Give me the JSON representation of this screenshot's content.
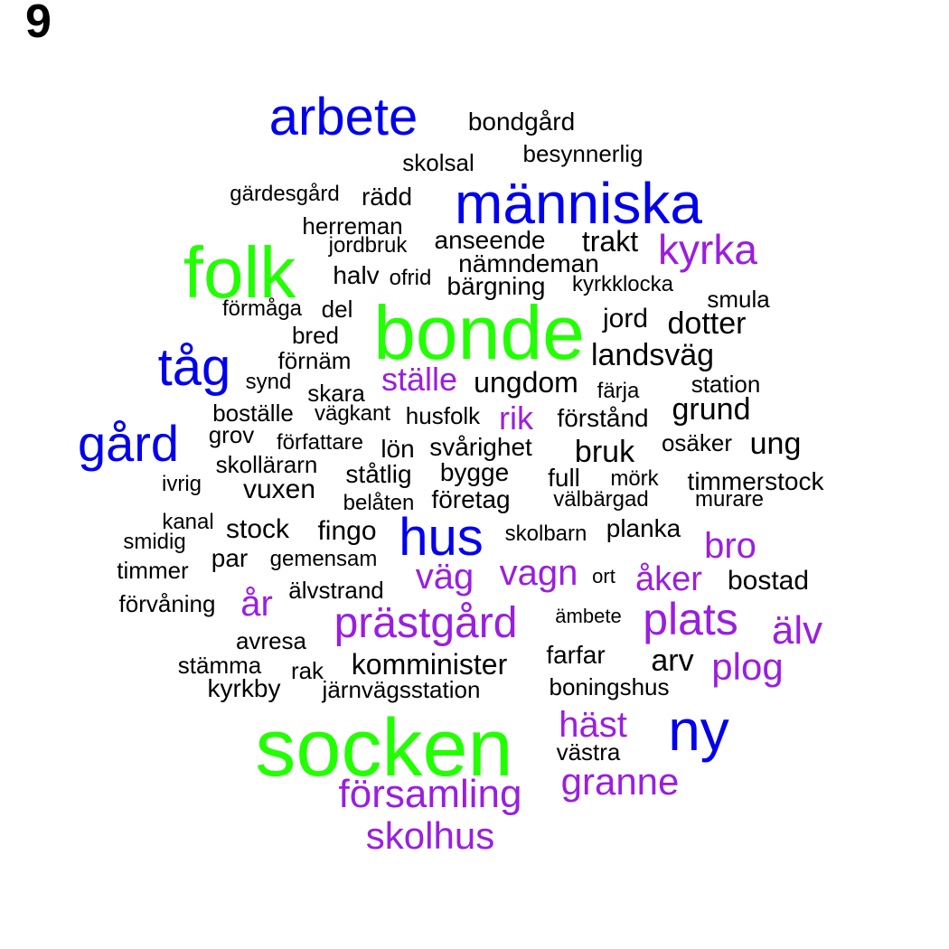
{
  "panel_number": "9",
  "colors": {
    "green": "#22ff00",
    "blue": "#0000ee",
    "purple": "#9a1ee0",
    "black": "#000000"
  },
  "words": [
    {
      "text": "socken",
      "color": "green"
    },
    {
      "text": "bonde",
      "color": "green"
    },
    {
      "text": "folk",
      "color": "green"
    },
    {
      "text": "arbete",
      "color": "blue"
    },
    {
      "text": "människa",
      "color": "blue"
    },
    {
      "text": "tåg",
      "color": "blue"
    },
    {
      "text": "gård",
      "color": "blue"
    },
    {
      "text": "hus",
      "color": "blue"
    },
    {
      "text": "ny",
      "color": "blue"
    },
    {
      "text": "kyrka",
      "color": "purple"
    },
    {
      "text": "ställe",
      "color": "purple"
    },
    {
      "text": "rik",
      "color": "purple"
    },
    {
      "text": "bro",
      "color": "purple"
    },
    {
      "text": "väg",
      "color": "purple"
    },
    {
      "text": "vagn",
      "color": "purple"
    },
    {
      "text": "åker",
      "color": "purple"
    },
    {
      "text": "år",
      "color": "purple"
    },
    {
      "text": "prästgård",
      "color": "purple"
    },
    {
      "text": "plats",
      "color": "purple"
    },
    {
      "text": "älv",
      "color": "purple"
    },
    {
      "text": "plog",
      "color": "purple"
    },
    {
      "text": "häst",
      "color": "purple"
    },
    {
      "text": "granne",
      "color": "purple"
    },
    {
      "text": "församling",
      "color": "purple"
    },
    {
      "text": "skolhus",
      "color": "purple"
    },
    {
      "text": "bondgård",
      "color": "black"
    },
    {
      "text": "besynnerlig",
      "color": "black"
    },
    {
      "text": "skolsal",
      "color": "black"
    },
    {
      "text": "gärdesgård",
      "color": "black"
    },
    {
      "text": "rädd",
      "color": "black"
    },
    {
      "text": "herreman",
      "color": "black"
    },
    {
      "text": "jordbruk",
      "color": "black"
    },
    {
      "text": "anseende",
      "color": "black"
    },
    {
      "text": "trakt",
      "color": "black"
    },
    {
      "text": "nämndeman",
      "color": "black"
    },
    {
      "text": "halv",
      "color": "black"
    },
    {
      "text": "ofrid",
      "color": "black"
    },
    {
      "text": "bärgning",
      "color": "black"
    },
    {
      "text": "kyrkklocka",
      "color": "black"
    },
    {
      "text": "smula",
      "color": "black"
    },
    {
      "text": "förmåga",
      "color": "black"
    },
    {
      "text": "del",
      "color": "black"
    },
    {
      "text": "jord",
      "color": "black"
    },
    {
      "text": "dotter",
      "color": "black"
    },
    {
      "text": "bred",
      "color": "black"
    },
    {
      "text": "landsväg",
      "color": "black"
    },
    {
      "text": "förnäm",
      "color": "black"
    },
    {
      "text": "synd",
      "color": "black"
    },
    {
      "text": "ungdom",
      "color": "black"
    },
    {
      "text": "station",
      "color": "black"
    },
    {
      "text": "skara",
      "color": "black"
    },
    {
      "text": "färja",
      "color": "black"
    },
    {
      "text": "grund",
      "color": "black"
    },
    {
      "text": "boställe",
      "color": "black"
    },
    {
      "text": "vägkant",
      "color": "black"
    },
    {
      "text": "husfolk",
      "color": "black"
    },
    {
      "text": "förstånd",
      "color": "black"
    },
    {
      "text": "grov",
      "color": "black"
    },
    {
      "text": "osäker",
      "color": "black"
    },
    {
      "text": "ung",
      "color": "black"
    },
    {
      "text": "författare",
      "color": "black"
    },
    {
      "text": "lön",
      "color": "black"
    },
    {
      "text": "svårighet",
      "color": "black"
    },
    {
      "text": "bruk",
      "color": "black"
    },
    {
      "text": "skollärarn",
      "color": "black"
    },
    {
      "text": "ståtlig",
      "color": "black"
    },
    {
      "text": "bygge",
      "color": "black"
    },
    {
      "text": "full",
      "color": "black"
    },
    {
      "text": "mörk",
      "color": "black"
    },
    {
      "text": "timmerstock",
      "color": "black"
    },
    {
      "text": "ivrig",
      "color": "black"
    },
    {
      "text": "vuxen",
      "color": "black"
    },
    {
      "text": "belåten",
      "color": "black"
    },
    {
      "text": "företag",
      "color": "black"
    },
    {
      "text": "välbärgad",
      "color": "black"
    },
    {
      "text": "murare",
      "color": "black"
    },
    {
      "text": "kanal",
      "color": "black"
    },
    {
      "text": "stock",
      "color": "black"
    },
    {
      "text": "fingo",
      "color": "black"
    },
    {
      "text": "skolbarn",
      "color": "black"
    },
    {
      "text": "planka",
      "color": "black"
    },
    {
      "text": "smidig",
      "color": "black"
    },
    {
      "text": "par",
      "color": "black"
    },
    {
      "text": "gemensam",
      "color": "black"
    },
    {
      "text": "timmer",
      "color": "black"
    },
    {
      "text": "ort",
      "color": "black"
    },
    {
      "text": "bostad",
      "color": "black"
    },
    {
      "text": "älvstrand",
      "color": "black"
    },
    {
      "text": "förvåning",
      "color": "black"
    },
    {
      "text": "ämbete",
      "color": "black"
    },
    {
      "text": "avresa",
      "color": "black"
    },
    {
      "text": "farfar",
      "color": "black"
    },
    {
      "text": "arv",
      "color": "black"
    },
    {
      "text": "stämma",
      "color": "black"
    },
    {
      "text": "rak",
      "color": "black"
    },
    {
      "text": "komminister",
      "color": "black"
    },
    {
      "text": "kyrkby",
      "color": "black"
    },
    {
      "text": "järnvägsstation",
      "color": "black"
    },
    {
      "text": "boningshus",
      "color": "black"
    },
    {
      "text": "västra",
      "color": "black"
    }
  ]
}
